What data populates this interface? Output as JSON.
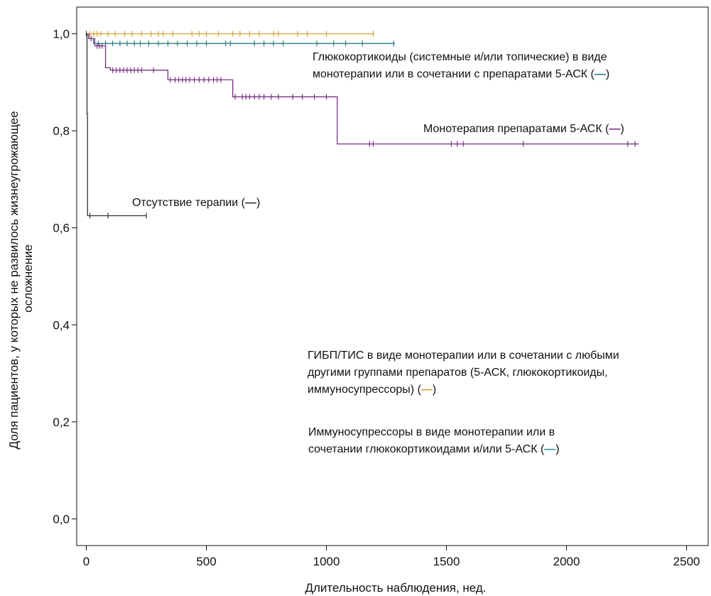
{
  "chart_data": {
    "type": "line",
    "subtype": "kaplan-meier",
    "xlabel": "Длительность наблюдения, нед.",
    "ylabel_lines": [
      "Доля пациентов, у которых не развилось жизнеугрожающее",
      "осложнение"
    ],
    "xlim": [
      -40,
      2590
    ],
    "ylim": [
      -0.055,
      1.055
    ],
    "x_ticks": [
      0,
      500,
      1000,
      1500,
      2000,
      2500
    ],
    "x_tick_labels": [
      "0",
      "500",
      "1000",
      "1500",
      "2000",
      "2500"
    ],
    "y_ticks": [
      0.0,
      0.2,
      0.4,
      0.6,
      0.8,
      1.0
    ],
    "y_tick_labels": [
      "0,0",
      "0,2",
      "0,4",
      "0,6",
      "0,8",
      "1,0"
    ],
    "grid": false,
    "series": [
      {
        "color": "#d9a33a",
        "steps": [
          [
            0,
            1.0
          ],
          [
            1200,
            1.0
          ]
        ],
        "censored": [
          [
            15,
            1.0
          ],
          [
            30,
            1.0
          ],
          [
            45,
            1.0
          ],
          [
            60,
            1.0
          ],
          [
            90,
            1.0
          ],
          [
            120,
            1.0
          ],
          [
            160,
            1.0
          ],
          [
            190,
            1.0
          ],
          [
            230,
            1.0
          ],
          [
            270,
            1.0
          ],
          [
            300,
            1.0
          ],
          [
            320,
            1.0
          ],
          [
            360,
            1.0
          ],
          [
            440,
            1.0
          ],
          [
            470,
            1.0
          ],
          [
            500,
            1.0
          ],
          [
            550,
            1.0
          ],
          [
            610,
            1.0
          ],
          [
            640,
            1.0
          ],
          [
            680,
            1.0
          ],
          [
            720,
            1.0
          ],
          [
            780,
            1.0
          ],
          [
            800,
            1.0
          ],
          [
            880,
            1.0
          ],
          [
            920,
            1.0
          ],
          [
            1000,
            1.0
          ],
          [
            1195,
            1.0
          ]
        ]
      },
      {
        "color": "#2f7a82",
        "steps": [
          [
            0,
            1.0
          ],
          [
            10,
            1.0
          ],
          [
            10,
            0.99
          ],
          [
            30,
            0.99
          ],
          [
            30,
            0.98
          ],
          [
            1285,
            0.98
          ]
        ],
        "censored": [
          [
            50,
            0.98
          ],
          [
            80,
            0.98
          ],
          [
            110,
            0.98
          ],
          [
            140,
            0.98
          ],
          [
            170,
            0.98
          ],
          [
            200,
            0.98
          ],
          [
            225,
            0.98
          ],
          [
            260,
            0.98
          ],
          [
            300,
            0.98
          ],
          [
            340,
            0.98
          ],
          [
            380,
            0.98
          ],
          [
            420,
            0.98
          ],
          [
            460,
            0.98
          ],
          [
            500,
            0.98
          ],
          [
            580,
            0.98
          ],
          [
            600,
            0.98
          ],
          [
            700,
            0.98
          ],
          [
            740,
            0.98
          ],
          [
            780,
            0.98
          ],
          [
            820,
            0.98
          ],
          [
            960,
            0.98
          ],
          [
            1030,
            0.98
          ],
          [
            1080,
            0.98
          ],
          [
            1150,
            0.98
          ],
          [
            1280,
            0.98
          ]
        ]
      },
      {
        "color": "#7a2f86",
        "steps": [
          [
            0,
            1.0
          ],
          [
            10,
            1.0
          ],
          [
            10,
            0.99
          ],
          [
            35,
            0.99
          ],
          [
            35,
            0.975
          ],
          [
            80,
            0.975
          ],
          [
            80,
            0.93
          ],
          [
            100,
            0.93
          ],
          [
            100,
            0.925
          ],
          [
            340,
            0.925
          ],
          [
            340,
            0.905
          ],
          [
            610,
            0.905
          ],
          [
            610,
            0.87
          ],
          [
            1045,
            0.87
          ],
          [
            1045,
            0.773
          ],
          [
            2300,
            0.773
          ]
        ],
        "censored": [
          [
            20,
            0.99
          ],
          [
            45,
            0.975
          ],
          [
            55,
            0.975
          ],
          [
            65,
            0.975
          ],
          [
            110,
            0.925
          ],
          [
            125,
            0.925
          ],
          [
            140,
            0.925
          ],
          [
            155,
            0.925
          ],
          [
            170,
            0.925
          ],
          [
            185,
            0.925
          ],
          [
            200,
            0.925
          ],
          [
            215,
            0.925
          ],
          [
            230,
            0.925
          ],
          [
            280,
            0.925
          ],
          [
            350,
            0.905
          ],
          [
            370,
            0.905
          ],
          [
            385,
            0.905
          ],
          [
            400,
            0.905
          ],
          [
            415,
            0.905
          ],
          [
            430,
            0.905
          ],
          [
            450,
            0.905
          ],
          [
            470,
            0.905
          ],
          [
            490,
            0.905
          ],
          [
            510,
            0.905
          ],
          [
            530,
            0.905
          ],
          [
            545,
            0.905
          ],
          [
            560,
            0.905
          ],
          [
            620,
            0.87
          ],
          [
            650,
            0.87
          ],
          [
            665,
            0.87
          ],
          [
            680,
            0.87
          ],
          [
            700,
            0.87
          ],
          [
            720,
            0.87
          ],
          [
            740,
            0.87
          ],
          [
            770,
            0.87
          ],
          [
            800,
            0.87
          ],
          [
            860,
            0.87
          ],
          [
            900,
            0.87
          ],
          [
            950,
            0.87
          ],
          [
            1000,
            0.87
          ],
          [
            1180,
            0.773
          ],
          [
            1195,
            0.773
          ],
          [
            1520,
            0.773
          ],
          [
            1545,
            0.773
          ],
          [
            1570,
            0.773
          ],
          [
            1820,
            0.773
          ],
          [
            2255,
            0.773
          ],
          [
            2285,
            0.773
          ]
        ]
      },
      {
        "color": "#333333",
        "steps": [
          [
            0,
            1.0
          ],
          [
            3,
            1.0
          ],
          [
            3,
            0.835
          ],
          [
            5,
            0.835
          ],
          [
            5,
            0.625
          ],
          [
            250,
            0.625
          ]
        ],
        "censored": [
          [
            0,
            1.0
          ],
          [
            15,
            0.625
          ],
          [
            90,
            0.625
          ],
          [
            250,
            0.625
          ]
        ]
      }
    ],
    "annotations": [
      {
        "lines": [
          "Глюкокортикоиды (системные и/или топические) в виде",
          "монотерапии или в сочетании с препаратами 5-АСК ("
        ],
        "close": ")",
        "color": "#2f7a82"
      },
      {
        "lines": [
          "Монотерапия препаратами 5-АСК ("
        ],
        "close": ")",
        "color": "#7a2f86"
      },
      {
        "lines": [
          "Отсутствие терапии ("
        ],
        "close": ")",
        "color": "#333333"
      },
      {
        "lines": [
          "ГИБП/ТИС в виде монотерапии или в сочетании с любыми",
          "другими группами препаратов (5-АСК, глюкокортикоиды,",
          "иммуносупрессоры) ("
        ],
        "close": ")",
        "color": "#d9a33a"
      },
      {
        "lines": [
          "Иммуносупрессоры в виде монотерапии или в",
          "сочетании глюкокортикоидами и/или 5-АСК ("
        ],
        "close": ")",
        "color": "#2f9aa0"
      }
    ]
  }
}
